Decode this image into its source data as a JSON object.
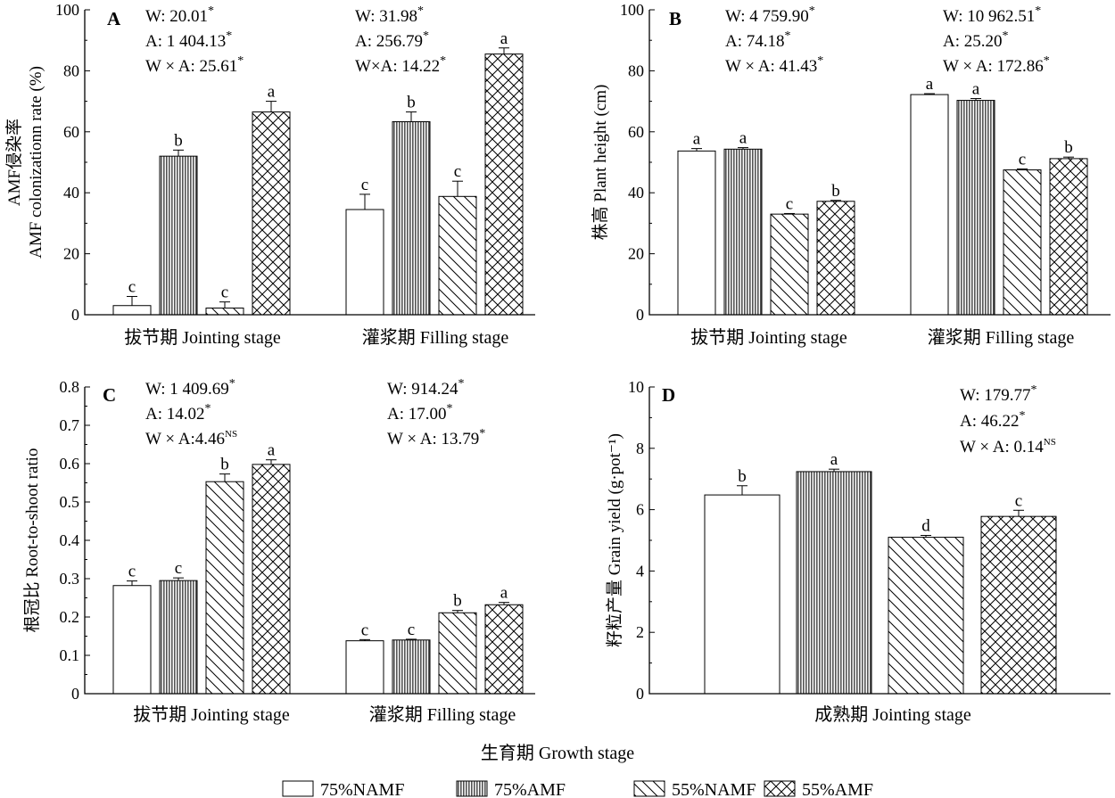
{
  "figure": {
    "x_title": "生育期 Growth stage",
    "legend": [
      {
        "name": "75%NAMF",
        "pattern": "white"
      },
      {
        "name": "75%AMF",
        "pattern": "vlines"
      },
      {
        "name": "55%NAMF",
        "pattern": "diag"
      },
      {
        "name": "55%AMF",
        "pattern": "cross"
      }
    ]
  },
  "chart_data": [
    {
      "panel": "A",
      "type": "bar",
      "ylabel_lines": [
        "AMF侵染率",
        "AMF colonizationn rate (%)"
      ],
      "ylim": [
        0,
        100
      ],
      "yticks": [
        "0",
        "20",
        "40",
        "60",
        "80",
        "100"
      ],
      "categories": [
        "拔节期 Jointing stage",
        "灌浆期 Filling stage"
      ],
      "series": [
        {
          "name": "75%NAMF",
          "values": [
            3.0,
            34.5
          ],
          "errors": [
            3.0,
            5.0
          ],
          "letters": [
            "c",
            "c"
          ]
        },
        {
          "name": "75%AMF",
          "values": [
            52.0,
            63.3
          ],
          "errors": [
            2.0,
            3.2
          ],
          "letters": [
            "b",
            "b"
          ]
        },
        {
          "name": "55%NAMF",
          "values": [
            2.2,
            38.8
          ],
          "errors": [
            2.0,
            5.0
          ],
          "letters": [
            "c",
            "c"
          ]
        },
        {
          "name": "55%AMF",
          "values": [
            66.5,
            85.5
          ],
          "errors": [
            3.5,
            2.0
          ],
          "letters": [
            "a",
            "a"
          ]
        }
      ],
      "annotations": [
        {
          "lines": [
            {
              "text": "W: 20.01",
              "sup": "*"
            },
            {
              "text": "A: 1 404.13",
              "sup": "*"
            },
            {
              "text": "W × A: 25.61",
              "sup": "*"
            }
          ]
        },
        {
          "lines": [
            {
              "text": "W: 31.98",
              "sup": "*"
            },
            {
              "text": "A: 256.79",
              "sup": "*"
            },
            {
              "text": "W×A: 14.22",
              "sup": "*"
            }
          ]
        }
      ]
    },
    {
      "panel": "B",
      "type": "bar",
      "ylabel_lines": [
        "株高 Plant height (cm)"
      ],
      "ylim": [
        0,
        100
      ],
      "yticks": [
        "0",
        "20",
        "40",
        "60",
        "80",
        "100"
      ],
      "categories": [
        "拔节期 Jointing stage",
        "灌浆期 Filling stage"
      ],
      "series": [
        {
          "name": "75%NAMF",
          "values": [
            53.7,
            72.2
          ],
          "errors": [
            0.8,
            0.3
          ],
          "letters": [
            "a",
            "a"
          ]
        },
        {
          "name": "75%AMF",
          "values": [
            54.3,
            70.3
          ],
          "errors": [
            0.5,
            0.6
          ],
          "letters": [
            "a",
            "a"
          ]
        },
        {
          "name": "55%NAMF",
          "values": [
            33.0,
            47.5
          ],
          "errors": [
            0.2,
            0.3
          ],
          "letters": [
            "c",
            "c"
          ]
        },
        {
          "name": "55%AMF",
          "values": [
            37.2,
            51.2
          ],
          "errors": [
            0.3,
            0.5
          ],
          "letters": [
            "b",
            "b"
          ]
        }
      ],
      "annotations": [
        {
          "lines": [
            {
              "text": "W: 4 759.90",
              "sup": "*"
            },
            {
              "text": "A: 74.18",
              "sup": "*"
            },
            {
              "text": "W × A: 41.43",
              "sup": "*"
            }
          ]
        },
        {
          "lines": [
            {
              "text": "W: 10 962.51",
              "sup": "*"
            },
            {
              "text": "A: 25.20",
              "sup": "*"
            },
            {
              "text": "W × A: 172.86",
              "sup": "*"
            }
          ]
        }
      ]
    },
    {
      "panel": "C",
      "type": "bar",
      "ylabel_lines": [
        "根冠比 Root-to-shoot ratio"
      ],
      "ylim": [
        0,
        0.8
      ],
      "yticks": [
        "0",
        "0.1",
        "0.2",
        "0.3",
        "0.4",
        "0.5",
        "0.6",
        "0.7",
        "0.8"
      ],
      "categories": [
        "拔节期 Jointing stage",
        "灌浆期 Filling stage"
      ],
      "series": [
        {
          "name": "75%NAMF",
          "values": [
            0.282,
            0.138
          ],
          "errors": [
            0.012,
            0.003
          ],
          "letters": [
            "c",
            "c"
          ]
        },
        {
          "name": "75%AMF",
          "values": [
            0.295,
            0.14
          ],
          "errors": [
            0.007,
            0.002
          ],
          "letters": [
            "c",
            "c"
          ]
        },
        {
          "name": "55%NAMF",
          "values": [
            0.553,
            0.211
          ],
          "errors": [
            0.02,
            0.006
          ],
          "letters": [
            "b",
            "b"
          ]
        },
        {
          "name": "55%AMF",
          "values": [
            0.598,
            0.232
          ],
          "errors": [
            0.012,
            0.006
          ],
          "letters": [
            "a",
            "a"
          ]
        }
      ],
      "annotations": [
        {
          "lines": [
            {
              "text": "W: 1 409.69",
              "sup": "*"
            },
            {
              "text": "A: 14.02",
              "sup": "*"
            },
            {
              "text": "W × A:4.46",
              "sup": "NS"
            }
          ]
        },
        {
          "lines": [
            {
              "text": "W: 914.24",
              "sup": "*"
            },
            {
              "text": "A: 17.00",
              "sup": "*"
            },
            {
              "text": "W × A: 13.79",
              "sup": "*"
            }
          ]
        }
      ]
    },
    {
      "panel": "D",
      "type": "bar",
      "ylabel_lines": [
        "籽粒产量 Grain yield (g·pot⁻¹)"
      ],
      "ylim": [
        0,
        10
      ],
      "yticks": [
        "0",
        "2",
        "4",
        "6",
        "8",
        "10"
      ],
      "categories": [
        "成熟期 Jointing stage"
      ],
      "series": [
        {
          "name": "75%NAMF",
          "values": [
            6.48
          ],
          "errors": [
            0.3
          ],
          "letters": [
            "b"
          ]
        },
        {
          "name": "75%AMF",
          "values": [
            7.24
          ],
          "errors": [
            0.08
          ],
          "letters": [
            "a"
          ]
        },
        {
          "name": "55%NAMF",
          "values": [
            5.1
          ],
          "errors": [
            0.06
          ],
          "letters": [
            "d"
          ]
        },
        {
          "name": "55%AMF",
          "values": [
            5.78
          ],
          "errors": [
            0.2
          ],
          "letters": [
            "c"
          ]
        }
      ],
      "annotations": [
        {
          "lines": [
            {
              "text": "W: 179.77",
              "sup": "*"
            },
            {
              "text": "A: 46.22",
              "sup": "*"
            },
            {
              "text": "W × A: 0.14",
              "sup": "NS"
            }
          ]
        }
      ]
    }
  ]
}
